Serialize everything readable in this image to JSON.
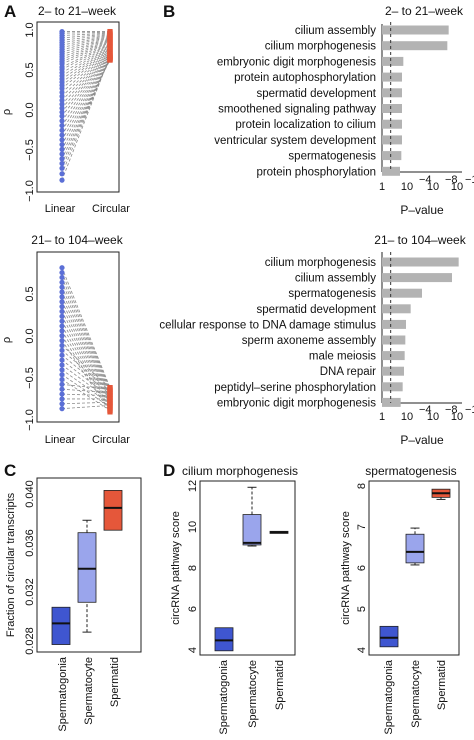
{
  "chart_data": [
    {
      "panel": "A",
      "type": "scatter",
      "title": "2– to 21–week",
      "ylabel": "ρ",
      "categories": [
        "Linear",
        "Circular"
      ],
      "ylim": [
        -1.0,
        1.0
      ],
      "yticks": [
        "−1.0",
        "−0.5",
        "0.0",
        "0.5",
        "1.0"
      ],
      "series": [
        {
          "values": [
            0.98,
            0.96,
            0.93,
            0.9,
            0.87,
            0.84,
            0.81,
            0.78,
            0.75,
            0.72,
            0.69,
            0.66,
            0.63,
            0.6,
            0.57,
            0.53,
            0.5,
            0.46,
            0.42,
            0.38,
            0.34,
            0.3,
            0.26,
            0.21,
            0.16,
            0.11,
            0.06,
            0.01,
            -0.04,
            -0.09,
            -0.15,
            -0.21,
            -0.27,
            -0.33,
            -0.39,
            -0.45,
            -0.51,
            -0.57,
            -0.63,
            -0.69,
            -0.75,
            -0.82,
            -0.9
          ]
        },
        {
          "values": [
            0.98,
            0.97,
            0.96,
            0.95,
            0.94,
            0.93,
            0.92,
            0.91,
            0.9,
            0.89,
            0.88,
            0.87,
            0.86,
            0.85,
            0.84,
            0.83,
            0.82,
            0.81,
            0.8,
            0.79,
            0.78,
            0.77,
            0.76,
            0.75,
            0.74,
            0.73,
            0.72,
            0.71,
            0.7,
            0.69,
            0.68,
            0.67,
            0.66,
            0.65,
            0.64,
            0.63,
            0.62,
            0.62,
            0.63,
            0.64,
            0.65,
            0.66,
            0.67
          ]
        }
      ],
      "colors": [
        "#5b6fd6",
        "#e5573a"
      ]
    },
    {
      "panel": "B",
      "type": "bar",
      "title": "2– to 21–week",
      "xlabel": "P–value",
      "xtick_labels": [
        "1",
        "10",
        "−4",
        "10",
        "−8",
        "10",
        "−12"
      ],
      "xlim_log10": [
        0,
        12
      ],
      "threshold_log10": 1.3,
      "categories": [
        "cilium assembly",
        "cilium morphogenesis",
        "embryonic digit morphogenesis",
        "protein autophosphorylation",
        "spermatid development",
        "smoothened signaling pathway",
        "protein localization to cilium",
        "ventricular system development",
        "spermatogenesis",
        "protein phosphorylation"
      ],
      "values": [
        10.0,
        9.8,
        3.2,
        3.0,
        3.0,
        3.0,
        3.0,
        3.0,
        2.9,
        2.7
      ],
      "color": "#b3b3b3"
    },
    {
      "panel": "A",
      "type": "scatter",
      "title": "21– to 104–week",
      "ylabel": "ρ",
      "categories": [
        "Linear",
        "Circular"
      ],
      "ylim": [
        -1.0,
        1.0
      ],
      "yticks": [
        "−1.0",
        "−0.5",
        "0.0",
        "0.5"
      ],
      "series": [
        {
          "values": [
            0.88,
            0.82,
            0.76,
            0.7,
            0.64,
            0.58,
            0.52,
            0.46,
            0.4,
            0.34,
            0.28,
            0.22,
            0.16,
            0.1,
            0.04,
            -0.02,
            -0.08,
            -0.14,
            -0.2,
            -0.26,
            -0.32,
            -0.38,
            -0.44,
            -0.5,
            -0.56,
            -0.62,
            -0.68,
            -0.74,
            -0.8,
            -0.86
          ]
        },
        {
          "values": [
            -0.6,
            -0.62,
            -0.64,
            -0.66,
            -0.68,
            -0.7,
            -0.72,
            -0.74,
            -0.76,
            -0.78,
            -0.8,
            -0.82,
            -0.84,
            -0.86,
            -0.88,
            -0.9,
            -0.6,
            -0.64,
            -0.68,
            -0.72,
            -0.76,
            -0.8,
            -0.84,
            -0.88,
            -0.62,
            -0.66,
            -0.7,
            -0.74,
            -0.78,
            -0.82
          ]
        }
      ],
      "colors": [
        "#5b6fd6",
        "#e5573a"
      ]
    },
    {
      "panel": "B",
      "type": "bar",
      "title": "21– to 104–week",
      "xlabel": "P–value",
      "xtick_labels": [
        "1",
        "10",
        "−4",
        "10",
        "−8",
        "10",
        "−12"
      ],
      "xlim_log10": [
        0,
        12
      ],
      "threshold_log10": 1.3,
      "categories": [
        "cilium morphogenesis",
        "cilium assembly",
        "spermatogenesis",
        "spermatid development",
        "cellular response to DNA damage stimulus",
        "sperm axoneme assembly",
        "male meiosis",
        "DNA repair",
        "peptidyl–serine phosphorylation",
        "embryonic digit morphogenesis"
      ],
      "values": [
        11.5,
        10.5,
        6.0,
        4.3,
        3.6,
        3.5,
        3.4,
        3.3,
        3.1,
        2.8
      ],
      "color": "#b3b3b3"
    },
    {
      "panel": "C",
      "type": "box",
      "ylabel": "Fraction of circular transcripts",
      "categories": [
        "Spermatogonia",
        "Spermatocyte",
        "Spermatid"
      ],
      "ylim": [
        0.0275,
        0.0415
      ],
      "yticks": [
        "0.028",
        "0.032",
        "0.036",
        "0.040"
      ],
      "boxes": [
        {
          "min": 0.0281,
          "q1": 0.0281,
          "median": 0.0298,
          "q3": 0.0311,
          "max": 0.0311,
          "color": "#3f56d0"
        },
        {
          "min": 0.0291,
          "q1": 0.0315,
          "median": 0.0342,
          "q3": 0.0371,
          "max": 0.0381,
          "color": "#9aa5ec"
        },
        {
          "min": 0.0373,
          "q1": 0.0373,
          "median": 0.0391,
          "q3": 0.0405,
          "max": 0.0405,
          "color": "#e5573a"
        }
      ]
    },
    {
      "panel": "D",
      "type": "box",
      "title": "cilium morphogenesis",
      "ylabel": "circRNA pathway score",
      "categories": [
        "Spermatogonia",
        "Spermatocyte",
        "Spermatid"
      ],
      "ylim": [
        3.8,
        12.1
      ],
      "yticks": [
        "4",
        "6",
        "8",
        "10",
        "12"
      ],
      "boxes": [
        {
          "min": 4.0,
          "q1": 4.0,
          "median": 4.5,
          "q3": 5.1,
          "max": 5.1,
          "color": "#3f56d0"
        },
        {
          "min": 9.0,
          "q1": 9.05,
          "median": 9.15,
          "q3": 10.5,
          "max": 11.8,
          "color": "#9aa5ec"
        },
        {
          "min": 9.6,
          "q1": 9.6,
          "median": 9.65,
          "q3": 9.7,
          "max": 9.7,
          "color": "#e5573a"
        }
      ]
    },
    {
      "panel": "D",
      "type": "box",
      "title": "spermatogenesis",
      "ylabel": "circRNA pathway score",
      "categories": [
        "Spermatogonia",
        "Spermatocyte",
        "Spermatid"
      ],
      "ylim": [
        3.9,
        8.15
      ],
      "yticks": [
        "4",
        "5",
        "6",
        "7",
        "8"
      ],
      "boxes": [
        {
          "min": 4.1,
          "q1": 4.1,
          "median": 4.32,
          "q3": 4.6,
          "max": 4.6,
          "color": "#3f56d0"
        },
        {
          "min": 6.1,
          "q1": 6.15,
          "median": 6.42,
          "q3": 6.85,
          "max": 7.0,
          "color": "#9aa5ec"
        },
        {
          "min": 7.7,
          "q1": 7.75,
          "median": 7.85,
          "q3": 7.95,
          "max": 7.95,
          "color": "#e5573a"
        }
      ]
    }
  ],
  "panel_labels": [
    "A",
    "B",
    "C",
    "D"
  ]
}
